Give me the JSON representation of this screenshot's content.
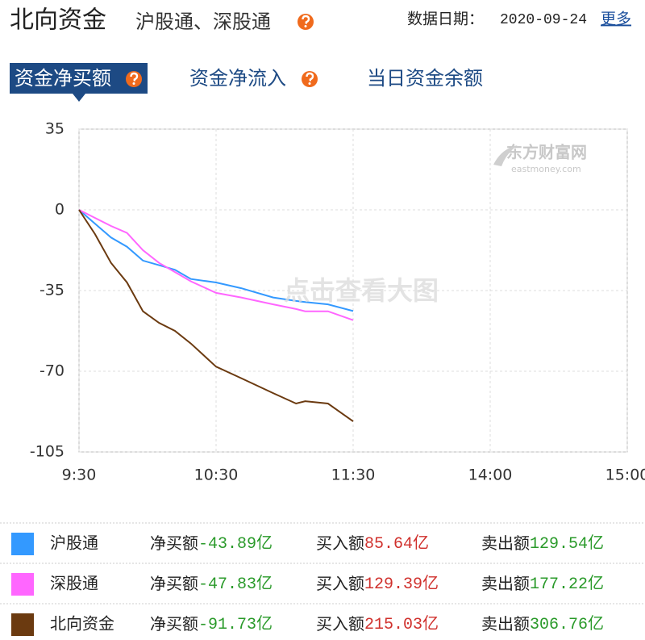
{
  "header": {
    "title": "北向资金",
    "subtitle": "沪股通、深股通",
    "date_label": "数据日期：",
    "date": "2020-09-24",
    "more": "更多"
  },
  "tabs": [
    "资金净买额",
    "资金净流入",
    "当日资金余额"
  ],
  "watermark": {
    "logo": "东方财富网",
    "domain": "eastmoney.com",
    "hint": "点击查看大图"
  },
  "chart_data": {
    "type": "line",
    "x": [
      0,
      7,
      14,
      21,
      28,
      35,
      42,
      49,
      60,
      71,
      85,
      95,
      99,
      109,
      120
    ],
    "xlim": [
      0,
      240
    ],
    "xticks": [
      {
        "value": 0,
        "label": "9:30"
      },
      {
        "value": 60,
        "label": "10:30"
      },
      {
        "value": 120,
        "label": "11:30"
      },
      {
        "value": 180,
        "label": "14:00"
      },
      {
        "value": 240,
        "label": "15:00"
      }
    ],
    "ylim": [
      -105,
      35
    ],
    "yticks": [
      35,
      0,
      -35,
      -70,
      -105
    ],
    "grid": true,
    "series": [
      {
        "name": "沪股通",
        "color": "#3399ff",
        "values": [
          0,
          -6,
          -12,
          -16,
          -22,
          -24,
          -26,
          -30,
          -31.5,
          -34,
          -38,
          -39.5,
          -40,
          -41,
          -43.89
        ]
      },
      {
        "name": "深股通",
        "color": "#ff66ff",
        "values": [
          0,
          -3.5,
          -7,
          -10,
          -17.5,
          -23,
          -27,
          -31,
          -36,
          -38,
          -41,
          -43,
          -44,
          -44,
          -47.83
        ]
      },
      {
        "name": "北向资金",
        "color": "#6b3a10",
        "values": [
          0,
          -10.5,
          -23,
          -31.5,
          -44,
          -49,
          -52.5,
          -58,
          -68,
          -73,
          -79.5,
          -84,
          -83,
          -84,
          -91.73
        ]
      }
    ]
  },
  "table": {
    "rows": [
      [
        {
          "label": "净买额",
          "value": "-43.89亿"
        },
        {
          "label": "买入额",
          "value": "85.64亿"
        },
        {
          "label": "卖出额",
          "value": "129.54亿"
        }
      ],
      [
        {
          "label": "净买额",
          "value": "-47.83亿"
        },
        {
          "label": "买入额",
          "value": "129.39亿"
        },
        {
          "label": "卖出额",
          "value": "177.22亿"
        }
      ],
      [
        {
          "label": "净买额",
          "value": "-91.73亿"
        },
        {
          "label": "买入额",
          "value": "215.03亿"
        },
        {
          "label": "卖出额",
          "value": "306.76亿"
        }
      ]
    ]
  }
}
